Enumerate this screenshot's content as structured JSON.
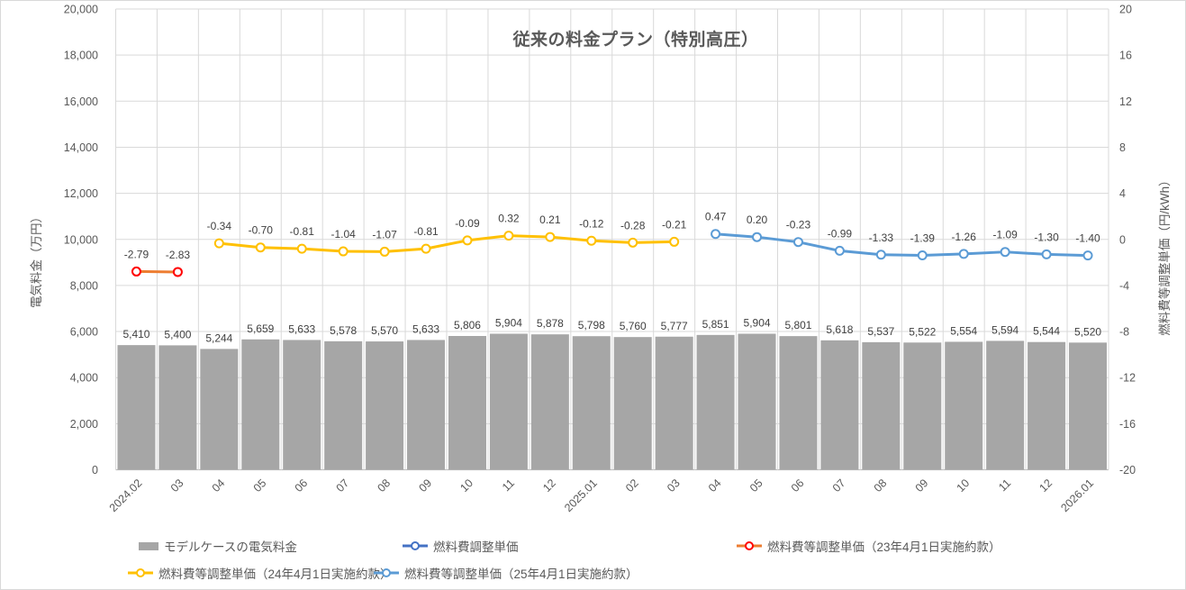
{
  "title": "従来の料金プラン（特別高圧）",
  "axes": {
    "left": {
      "title": "電気料金（万円）",
      "tick_labels_top_to_bottom": [
        "20,000",
        "18,000",
        "16,000",
        "14,000",
        "12,000",
        "10,000",
        "8,000",
        "6,000",
        "4,000",
        "2,000",
        "0"
      ]
    },
    "right": {
      "title": "燃料費等調整単価（円/kWh）",
      "tick_labels_top_to_bottom": [
        "20",
        "16",
        "12",
        "8",
        "4",
        "0",
        "-4",
        "-8",
        "-12",
        "-16",
        "-20"
      ]
    },
    "x": {
      "tick_labels": [
        "2024.02",
        "03",
        "04",
        "05",
        "06",
        "07",
        "08",
        "09",
        "10",
        "11",
        "12",
        "2025.01",
        "02",
        "03",
        "04",
        "05",
        "06",
        "07",
        "08",
        "09",
        "10",
        "11",
        "12",
        "2026.01"
      ]
    }
  },
  "chart_data": {
    "type": "bar+line combo",
    "title": "従来の料金プラン（特別高圧）",
    "categories": [
      "2024.02",
      "03",
      "04",
      "05",
      "06",
      "07",
      "08",
      "09",
      "10",
      "11",
      "12",
      "2025.01",
      "02",
      "03",
      "04",
      "05",
      "06",
      "07",
      "08",
      "09",
      "10",
      "11",
      "12",
      "2026.01"
    ],
    "left_axis": {
      "label": "電気料金（万円）",
      "range": [
        0,
        20000
      ],
      "step": 2000
    },
    "right_axis": {
      "label": "燃料費等調整単価（円/kWh）",
      "range": [
        -20,
        20
      ],
      "step": 4
    },
    "grid": true,
    "legend_position": "bottom",
    "series": [
      {
        "name": "モデルケースの電気料金",
        "type": "bar",
        "axis": "left",
        "color": "#A6A6A6",
        "start_index": 0,
        "values": [
          5410,
          5400,
          5244,
          5659,
          5633,
          5578,
          5570,
          5633,
          5806,
          5904,
          5878,
          5798,
          5760,
          5777,
          5851,
          5904,
          5801,
          5618,
          5537,
          5522,
          5554,
          5594,
          5544,
          5520
        ]
      },
      {
        "name": "燃料費調整単価",
        "type": "line",
        "axis": "right",
        "color": "#4472C4",
        "marker_color": "#4472C4",
        "start_index": 0,
        "values": []
      },
      {
        "name": "燃料費等調整単価（23年4月1日実施約款）",
        "type": "line",
        "axis": "right",
        "color": "#ED7D31",
        "marker_color": "#FF0000",
        "start_index": 0,
        "values": [
          -2.79,
          -2.83
        ]
      },
      {
        "name": "燃料費等調整単価（24年4月1日実施約款）",
        "type": "line",
        "axis": "right",
        "color": "#FFC000",
        "marker_color": "#FFC000",
        "start_index": 2,
        "values": [
          -0.34,
          -0.7,
          -0.81,
          -1.04,
          -1.07,
          -0.81,
          -0.09,
          0.32,
          0.21,
          -0.12,
          -0.28,
          -0.21
        ]
      },
      {
        "name": "燃料費等調整単価（25年4月1日実施約款）",
        "type": "line",
        "axis": "right",
        "color": "#5B9BD5",
        "marker_color": "#5B9BD5",
        "start_index": 14,
        "values": [
          0.47,
          0.2,
          -0.23,
          -0.99,
          -1.33,
          -1.39,
          -1.26,
          -1.09,
          -1.3,
          -1.4
        ]
      }
    ]
  },
  "legend": {
    "items": [
      {
        "label": "モデルケースの電気料金",
        "swatch": "bar",
        "color": "#A6A6A6",
        "marker_color": "#A6A6A6"
      },
      {
        "label": "燃料費調整単価",
        "swatch": "line",
        "color": "#4472C4",
        "marker_color": "#4472C4"
      },
      {
        "label": "燃料費等調整単価（23年4月1日実施約款）",
        "swatch": "line",
        "color": "#ED7D31",
        "marker_color": "#FF0000"
      },
      {
        "label": "燃料費等調整単価（24年4月1日実施約款）",
        "swatch": "line",
        "color": "#FFC000",
        "marker_color": "#FFC000"
      },
      {
        "label": "燃料費等調整単価（25年4月1日実施約款）",
        "swatch": "line",
        "color": "#5B9BD5",
        "marker_color": "#5B9BD5"
      }
    ]
  },
  "colors": {
    "bar": "#A6A6A6",
    "gridline": "#D9D9D9",
    "axis_line": "#BFBFBF",
    "text": "#595959",
    "data_label": "#404040"
  }
}
